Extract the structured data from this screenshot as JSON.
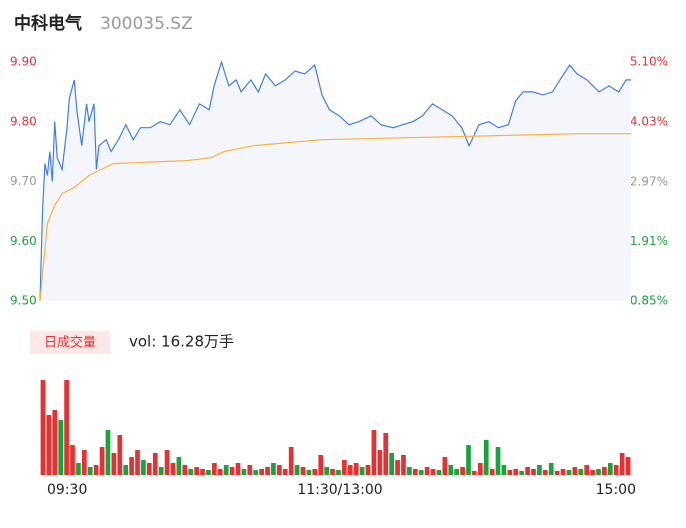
{
  "header": {
    "title": "中科电气",
    "code": "300035.SZ"
  },
  "chart_data": {
    "type": "line",
    "xlim": [
      0,
      241
    ],
    "ylim": [
      9.5,
      9.9
    ],
    "yticks": [
      {
        "value": 9.9,
        "label": "9.90"
      },
      {
        "value": 9.8,
        "label": "9.80"
      },
      {
        "value": 9.7,
        "label": "9.70"
      },
      {
        "value": 9.6,
        "label": "9.60"
      },
      {
        "value": 9.5,
        "label": "9.50"
      }
    ],
    "ytick_colors": [
      "#e83030",
      "#e83030",
      "#999999",
      "#19a33a",
      "#19a33a"
    ],
    "y2lim": [
      0.85,
      5.1
    ],
    "y2ticks": [
      {
        "value": 5.1,
        "label": "5.10%"
      },
      {
        "value": 4.03,
        "label": "4.03%"
      },
      {
        "value": 2.97,
        "label": "2.97%"
      },
      {
        "value": 1.91,
        "label": "1.91%"
      },
      {
        "value": 0.85,
        "label": "0.85%"
      }
    ],
    "series": [
      {
        "name": "price",
        "color": "#3f7fe0",
        "x": [
          0,
          1,
          2,
          3,
          4,
          5,
          6,
          7,
          9,
          11,
          12,
          14,
          15,
          17,
          19,
          20,
          22,
          23,
          24,
          27,
          29,
          32,
          35,
          38,
          41,
          45,
          49,
          53,
          57,
          61,
          65,
          69,
          71,
          74,
          77,
          80,
          82,
          86,
          89,
          92,
          96,
          100,
          104,
          108,
          112,
          115,
          118,
          122,
          126,
          130,
          135,
          139,
          144,
          148,
          152,
          156,
          160,
          164,
          168,
          172,
          175,
          179,
          183,
          187,
          191,
          194,
          197,
          201,
          205,
          209,
          212,
          216,
          219,
          223,
          228,
          232,
          236,
          239,
          241
        ],
        "values": [
          9.5,
          9.65,
          9.73,
          9.71,
          9.75,
          9.7,
          9.8,
          9.74,
          9.72,
          9.79,
          9.84,
          9.87,
          9.82,
          9.76,
          9.83,
          9.8,
          9.83,
          9.72,
          9.76,
          9.77,
          9.75,
          9.77,
          9.795,
          9.77,
          9.79,
          9.79,
          9.8,
          9.795,
          9.82,
          9.795,
          9.83,
          9.82,
          9.86,
          9.9,
          9.86,
          9.87,
          9.85,
          9.87,
          9.85,
          9.88,
          9.86,
          9.87,
          9.885,
          9.88,
          9.895,
          9.845,
          9.82,
          9.81,
          9.795,
          9.8,
          9.81,
          9.795,
          9.79,
          9.795,
          9.8,
          9.81,
          9.83,
          9.82,
          9.81,
          9.79,
          9.76,
          9.795,
          9.8,
          9.79,
          9.795,
          9.835,
          9.85,
          9.85,
          9.845,
          9.85,
          9.87,
          9.895,
          9.88,
          9.87,
          9.85,
          9.86,
          9.85,
          9.87,
          9.87
        ]
      },
      {
        "name": "average",
        "color": "#f5b43a",
        "x": [
          0,
          3,
          6,
          9,
          14,
          20,
          25,
          30,
          60,
          70,
          75,
          87,
          115,
          220,
          241
        ],
        "values": [
          9.5,
          9.63,
          9.66,
          9.68,
          9.69,
          9.71,
          9.72,
          9.73,
          9.735,
          9.74,
          9.75,
          9.76,
          9.77,
          9.78,
          9.78
        ]
      }
    ]
  },
  "volume": {
    "badge": "日成交量",
    "label": "vol: 16.28万手",
    "ylim": [
      0,
      100
    ],
    "up_color": "#e83030",
    "down_color": "#19a33a",
    "values": [
      95,
      60,
      65,
      55,
      95,
      30,
      12,
      25,
      8,
      10,
      28,
      45,
      22,
      40,
      10,
      18,
      25,
      15,
      12,
      22,
      8,
      25,
      12,
      18,
      10,
      6,
      8,
      6,
      5,
      12,
      6,
      10,
      8,
      12,
      6,
      10,
      5,
      6,
      8,
      12,
      10,
      6,
      28,
      10,
      8,
      5,
      6,
      20,
      8,
      6,
      5,
      15,
      10,
      12,
      8,
      10,
      45,
      25,
      42,
      22,
      15,
      20,
      8,
      6,
      5,
      8,
      6,
      5,
      18,
      10,
      6,
      8,
      30,
      4,
      12,
      35,
      6,
      28,
      10,
      5,
      6,
      4,
      8,
      6,
      10,
      5,
      12,
      4,
      6,
      5,
      8,
      6,
      10,
      5,
      6,
      8,
      12,
      10,
      22,
      18
    ],
    "up": [
      1,
      1,
      1,
      0,
      1,
      1,
      0,
      1,
      0,
      1,
      1,
      0,
      1,
      1,
      0,
      1,
      1,
      0,
      1,
      1,
      0,
      1,
      1,
      0,
      1,
      0,
      1,
      1,
      0,
      1,
      1,
      0,
      1,
      1,
      0,
      1,
      0,
      1,
      1,
      0,
      1,
      1,
      1,
      0,
      1,
      0,
      1,
      1,
      0,
      1,
      0,
      1,
      1,
      1,
      0,
      1,
      1,
      1,
      1,
      0,
      1,
      1,
      0,
      1,
      0,
      1,
      1,
      0,
      1,
      0,
      0,
      1,
      0,
      1,
      1,
      0,
      1,
      0,
      0,
      1,
      1,
      0,
      1,
      1,
      0,
      1,
      0,
      1,
      1,
      0,
      1,
      0,
      1,
      1,
      0,
      1,
      0,
      1,
      1,
      1
    ],
    "xticks": [
      "09:30",
      "11:30/13:00",
      "15:00"
    ]
  }
}
